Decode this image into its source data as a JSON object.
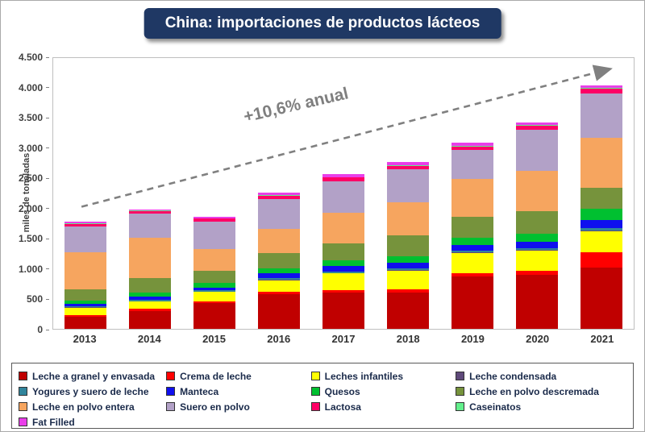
{
  "title": "China: importaciones de productos lácteos",
  "annotation": "+10,6% anual",
  "y_axis_label": "miles de toneladas",
  "chart_data": {
    "type": "bar",
    "stacked": true,
    "title": "China: importaciones de productos lácteos",
    "xlabel": "",
    "ylabel": "miles de toneladas",
    "ylim": [
      0,
      4500
    ],
    "grid": false,
    "legend_position": "bottom",
    "annotation": "+10,6% anual",
    "y_ticks": [
      "0",
      "500",
      "1.000",
      "1.500",
      "2.000",
      "2.500",
      "3.000",
      "3.500",
      "4.000",
      "4.500"
    ],
    "categories": [
      "2013",
      "2014",
      "2015",
      "2016",
      "2017",
      "2018",
      "2019",
      "2020",
      "2021"
    ],
    "series": [
      {
        "name": "Leche a granel y envasada",
        "color": "#C00000",
        "values": [
          200,
          300,
          430,
          580,
          600,
          600,
          870,
          900,
          1020
        ]
      },
      {
        "name": "Crema de leche",
        "color": "#FF0000",
        "values": [
          30,
          30,
          30,
          30,
          40,
          50,
          60,
          70,
          250
        ]
      },
      {
        "name": "Leches infantiles",
        "color": "#FFFF00",
        "values": [
          120,
          120,
          150,
          200,
          280,
          320,
          330,
          330,
          350
        ]
      },
      {
        "name": "Leche condensada",
        "color": "#5F497A",
        "values": [
          10,
          10,
          10,
          10,
          10,
          10,
          10,
          10,
          15
        ]
      },
      {
        "name": "Yogures y suero de leche",
        "color": "#31859C",
        "values": [
          20,
          20,
          20,
          20,
          25,
          30,
          30,
          35,
          40
        ]
      },
      {
        "name": "Manteca",
        "color": "#0F0FEF",
        "values": [
          40,
          60,
          50,
          80,
          90,
          90,
          90,
          100,
          140
        ]
      },
      {
        "name": "Quesos",
        "color": "#00C030",
        "values": [
          50,
          60,
          70,
          90,
          100,
          110,
          120,
          130,
          180
        ]
      },
      {
        "name": "Leche en polvo descremada",
        "color": "#76933C",
        "values": [
          190,
          250,
          200,
          250,
          280,
          340,
          350,
          380,
          350
        ]
      },
      {
        "name": "Leche en polvo entera",
        "color": "#F6A55F",
        "values": [
          620,
          670,
          370,
          400,
          500,
          550,
          630,
          670,
          830
        ]
      },
      {
        "name": "Suero en polvo",
        "color": "#B2A1C7",
        "values": [
          420,
          400,
          450,
          500,
          530,
          550,
          480,
          680,
          740
        ]
      },
      {
        "name": "Lactosa",
        "color": "#FF0066",
        "values": [
          40,
          40,
          50,
          50,
          60,
          60,
          60,
          70,
          80
        ]
      },
      {
        "name": "Caseinatos",
        "color": "#63F08C",
        "values": [
          10,
          10,
          10,
          10,
          10,
          15,
          15,
          15,
          15
        ]
      },
      {
        "name": "Fat Filled",
        "color": "#E93EE9",
        "values": [
          30,
          20,
          30,
          40,
          50,
          55,
          55,
          40,
          40
        ]
      }
    ],
    "trend_arrow": {
      "x1_category": "2013",
      "y1": 2030,
      "x2_category": "2021",
      "y2": 4300,
      "color": "#808080",
      "style": "dashed"
    }
  }
}
